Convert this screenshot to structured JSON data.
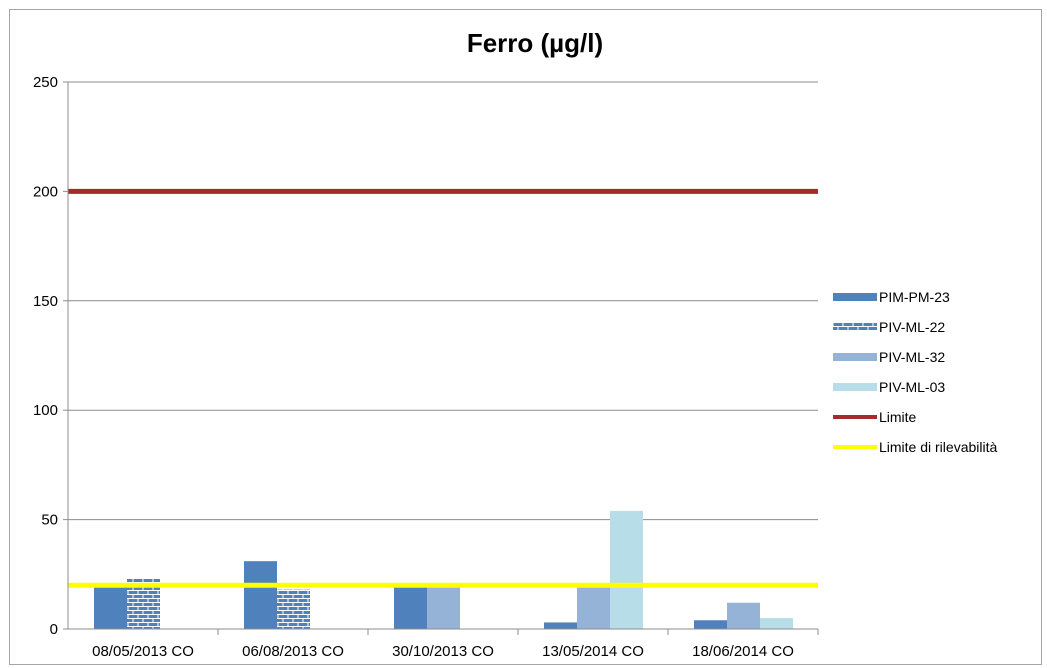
{
  "chart_data": {
    "type": "bar",
    "title": "Ferro (µg/l)",
    "xlabel": "",
    "ylabel": "",
    "ylim": [
      0,
      250
    ],
    "yticks": [
      0,
      50,
      100,
      150,
      200,
      250
    ],
    "grid": true,
    "legend_position": "right",
    "categories": [
      "08/05/2013 CO",
      "06/08/2013 CO",
      "30/10/2013 CO",
      "13/05/2014 CO",
      "18/06/2014 CO"
    ],
    "series": [
      {
        "name": "PIM-PM-23",
        "color": "#4f81bd",
        "pattern": "solid",
        "values": [
          21,
          31,
          19,
          3,
          4
        ]
      },
      {
        "name": "PIV-ML-22",
        "color": "#4f81bd",
        "pattern": "brick",
        "values": [
          23,
          18,
          null,
          null,
          null
        ]
      },
      {
        "name": "PIV-ML-32",
        "color": "#95b3d7",
        "pattern": "solid",
        "values": [
          null,
          null,
          19,
          19,
          12
        ]
      },
      {
        "name": "PIV-ML-03",
        "color": "#b7dee8",
        "pattern": "solid",
        "values": [
          null,
          null,
          null,
          54,
          5
        ]
      }
    ],
    "reference_lines": [
      {
        "name": "Limite",
        "value": 200,
        "color": "#a52a2a"
      },
      {
        "name": "Limite di rilevabilità",
        "value": 20,
        "color": "#ffff00"
      }
    ]
  }
}
